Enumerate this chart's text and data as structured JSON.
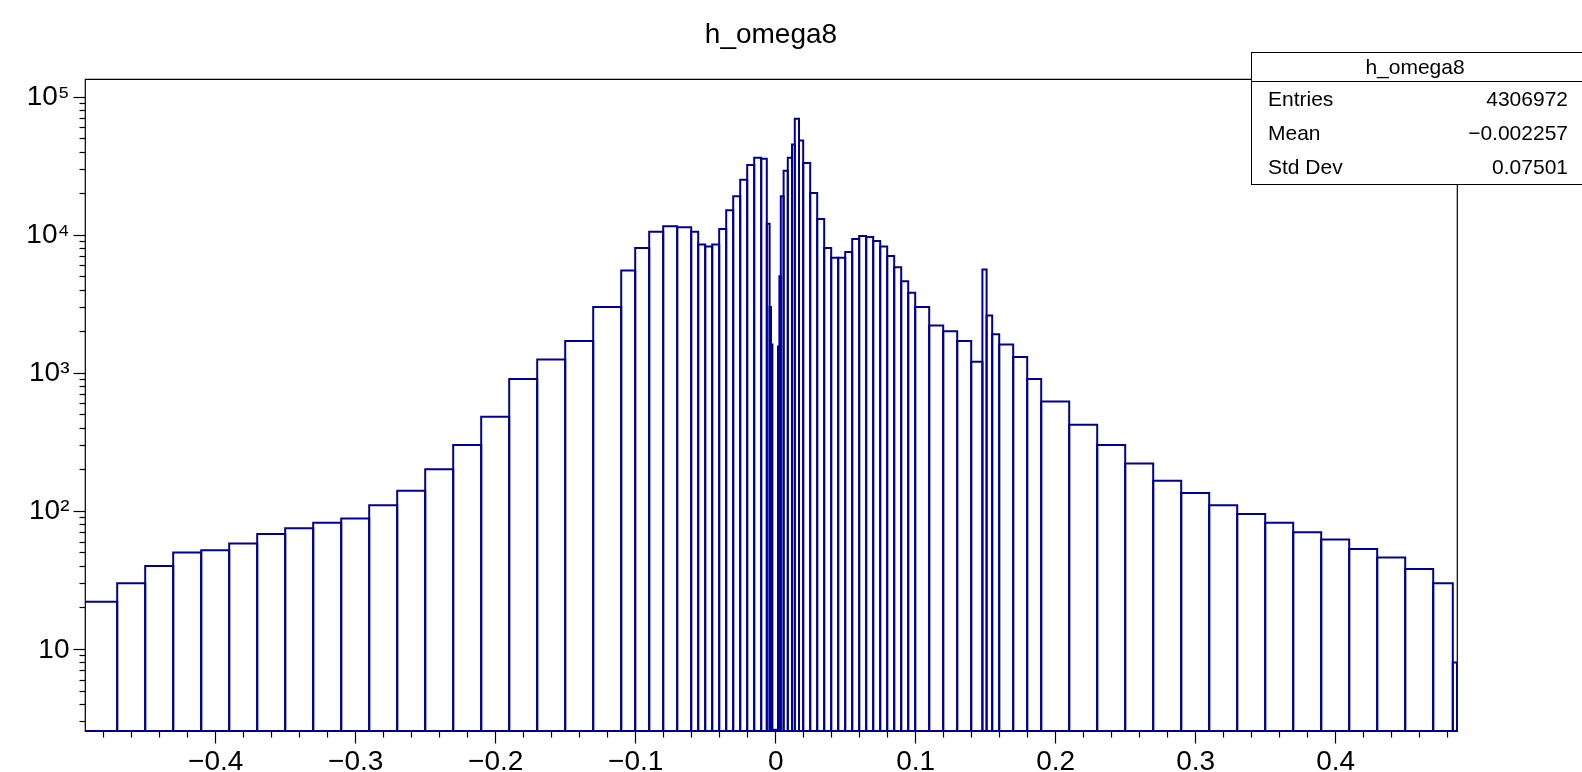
{
  "chart_data": {
    "type": "histogram",
    "title": "h_omega8",
    "annotations": [
      "h_omega8",
      "Entries",
      "4306972",
      "Mean",
      "−0.002257",
      "Std Dev",
      "0.07501"
    ],
    "bins": [
      -0.493,
      -0.47,
      -0.45,
      -0.43,
      -0.41,
      -0.39,
      -0.37,
      -0.35,
      -0.33,
      -0.31,
      -0.29,
      -0.27,
      -0.25,
      -0.23,
      -0.21,
      -0.19,
      -0.17,
      -0.15,
      -0.13,
      -0.11,
      -0.1,
      -0.09,
      -0.08,
      -0.07,
      -0.06,
      -0.055,
      -0.05,
      -0.045,
      -0.04,
      -0.035,
      -0.03,
      -0.025,
      -0.02,
      -0.015,
      -0.01,
      -0.006,
      -0.004,
      -0.003,
      -0.002,
      0.002,
      0.003,
      0.004,
      0.006,
      0.009,
      0.012,
      0.014,
      0.017,
      0.02,
      0.025,
      0.03,
      0.035,
      0.04,
      0.045,
      0.05,
      0.055,
      0.06,
      0.065,
      0.07,
      0.075,
      0.08,
      0.085,
      0.09,
      0.095,
      0.1,
      0.11,
      0.12,
      0.13,
      0.14,
      0.148,
      0.151,
      0.155,
      0.16,
      0.17,
      0.18,
      0.19,
      0.21,
      0.23,
      0.25,
      0.27,
      0.29,
      0.31,
      0.33,
      0.35,
      0.37,
      0.39,
      0.41,
      0.43,
      0.45,
      0.47,
      0.484,
      0.487
    ],
    "values": [
      22,
      30,
      40,
      50,
      52,
      58,
      68,
      75,
      82,
      88,
      110,
      140,
      200,
      300,
      480,
      900,
      1250,
      1700,
      3000,
      5500,
      8000,
      10500,
      11500,
      11300,
      10500,
      8500,
      8200,
      8500,
      11000,
      15000,
      19000,
      25000,
      32000,
      36000,
      35500,
      12000,
      3000,
      1600,
      2.6,
      1550,
      5000,
      19000,
      29000,
      36000,
      45000,
      69000,
      48000,
      33000,
      20000,
      13000,
      8000,
      6800,
      6800,
      7500,
      9300,
      9800,
      9600,
      9000,
      8200,
      7000,
      5800,
      4600,
      3800,
      3000,
      2200,
      2000,
      1700,
      1200,
      5600,
      2600,
      1900,
      1600,
      1300,
      900,
      620,
      420,
      300,
      220,
      165,
      135,
      110,
      95,
      82,
      70,
      62,
      53,
      46,
      38,
      30,
      8
    ],
    "color": "#000099",
    "log": "y",
    "xlim": [
      -0.493,
      0.487
    ],
    "ylim": [
      2.55,
      134000
    ],
    "xticks": [
      {
        "value": -0.48,
        "label": null
      },
      {
        "value": -0.46,
        "label": null
      },
      {
        "value": -0.44,
        "label": null
      },
      {
        "value": -0.42,
        "label": null
      },
      -0.4,
      {
        "value": -0.38,
        "label": null
      },
      {
        "value": -0.36,
        "label": null
      },
      {
        "value": -0.34,
        "label": null
      },
      {
        "value": -0.32,
        "label": null
      },
      -0.3,
      {
        "value": -0.28,
        "label": null
      },
      {
        "value": -0.26,
        "label": null
      },
      {
        "value": -0.24,
        "label": null
      },
      {
        "value": -0.22,
        "label": null
      },
      -0.2,
      {
        "value": -0.18,
        "label": null
      },
      {
        "value": -0.16,
        "label": null
      },
      {
        "value": -0.14,
        "label": null
      },
      {
        "value": -0.12,
        "label": null
      },
      -0.1,
      {
        "value": -0.08,
        "label": null
      },
      {
        "value": -0.06,
        "label": null
      },
      {
        "value": -0.04,
        "label": null
      },
      {
        "value": -0.02,
        "label": null
      },
      0,
      {
        "value": 0.02,
        "label": null
      },
      {
        "value": 0.04,
        "label": null
      },
      {
        "value": 0.06,
        "label": null
      },
      {
        "value": 0.08,
        "label": null
      },
      0.1,
      {
        "value": 0.12,
        "label": null
      },
      {
        "value": 0.14,
        "label": null
      },
      {
        "value": 0.16,
        "label": null
      },
      {
        "value": 0.18,
        "label": null
      },
      0.2,
      {
        "value": 0.22,
        "label": null
      },
      {
        "value": 0.24,
        "label": null
      },
      {
        "value": 0.26,
        "label": null
      },
      {
        "value": 0.28,
        "label": null
      },
      0.3,
      {
        "value": 0.32,
        "label": null
      },
      {
        "value": 0.34,
        "label": null
      },
      {
        "value": 0.36,
        "label": null
      },
      {
        "value": 0.38,
        "label": null
      },
      0.4,
      {
        "value": 0.42,
        "label": null
      },
      {
        "value": 0.44,
        "label": null
      },
      {
        "value": 0.46,
        "label": null
      },
      {
        "value": 0.48,
        "label": null
      }
    ],
    "yticks": [
      {
        "value": 3,
        "label": null
      },
      {
        "value": 4,
        "label": null
      },
      {
        "value": 5,
        "label": null
      },
      {
        "value": 6,
        "label": null
      },
      {
        "value": 7,
        "label": null
      },
      {
        "value": 8,
        "label": null
      },
      {
        "value": 9,
        "label": null
      },
      10,
      {
        "value": 20,
        "label": null
      },
      {
        "value": 30,
        "label": null
      },
      {
        "value": 40,
        "label": null
      },
      {
        "value": 50,
        "label": null
      },
      {
        "value": 60,
        "label": null
      },
      {
        "value": 70,
        "label": null
      },
      {
        "value": 80,
        "label": null
      },
      {
        "value": 90,
        "label": null
      },
      {
        "value": 100,
        "label": "10²"
      },
      {
        "value": 200,
        "label": null
      },
      {
        "value": 300,
        "label": null
      },
      {
        "value": 400,
        "label": null
      },
      {
        "value": 500,
        "label": null
      },
      {
        "value": 600,
        "label": null
      },
      {
        "value": 700,
        "label": null
      },
      {
        "value": 800,
        "label": null
      },
      {
        "value": 900,
        "label": null
      },
      {
        "value": 1000,
        "label": "10³"
      },
      {
        "value": 2000,
        "label": null
      },
      {
        "value": 3000,
        "label": null
      },
      {
        "value": 4000,
        "label": null
      },
      {
        "value": 5000,
        "label": null
      },
      {
        "value": 6000,
        "label": null
      },
      {
        "value": 7000,
        "label": null
      },
      {
        "value": 8000,
        "label": null
      },
      {
        "value": 9000,
        "label": null
      },
      {
        "value": 10000,
        "label": "10⁴"
      },
      {
        "value": 20000,
        "label": null
      },
      {
        "value": 30000,
        "label": null
      },
      {
        "value": 40000,
        "label": null
      },
      {
        "value": 50000,
        "label": null
      },
      {
        "value": 60000,
        "label": null
      },
      {
        "value": 70000,
        "label": null
      },
      {
        "value": 80000,
        "label": null
      },
      {
        "value": 90000,
        "label": null
      },
      {
        "value": 100000,
        "label": "10⁵"
      }
    ]
  }
}
